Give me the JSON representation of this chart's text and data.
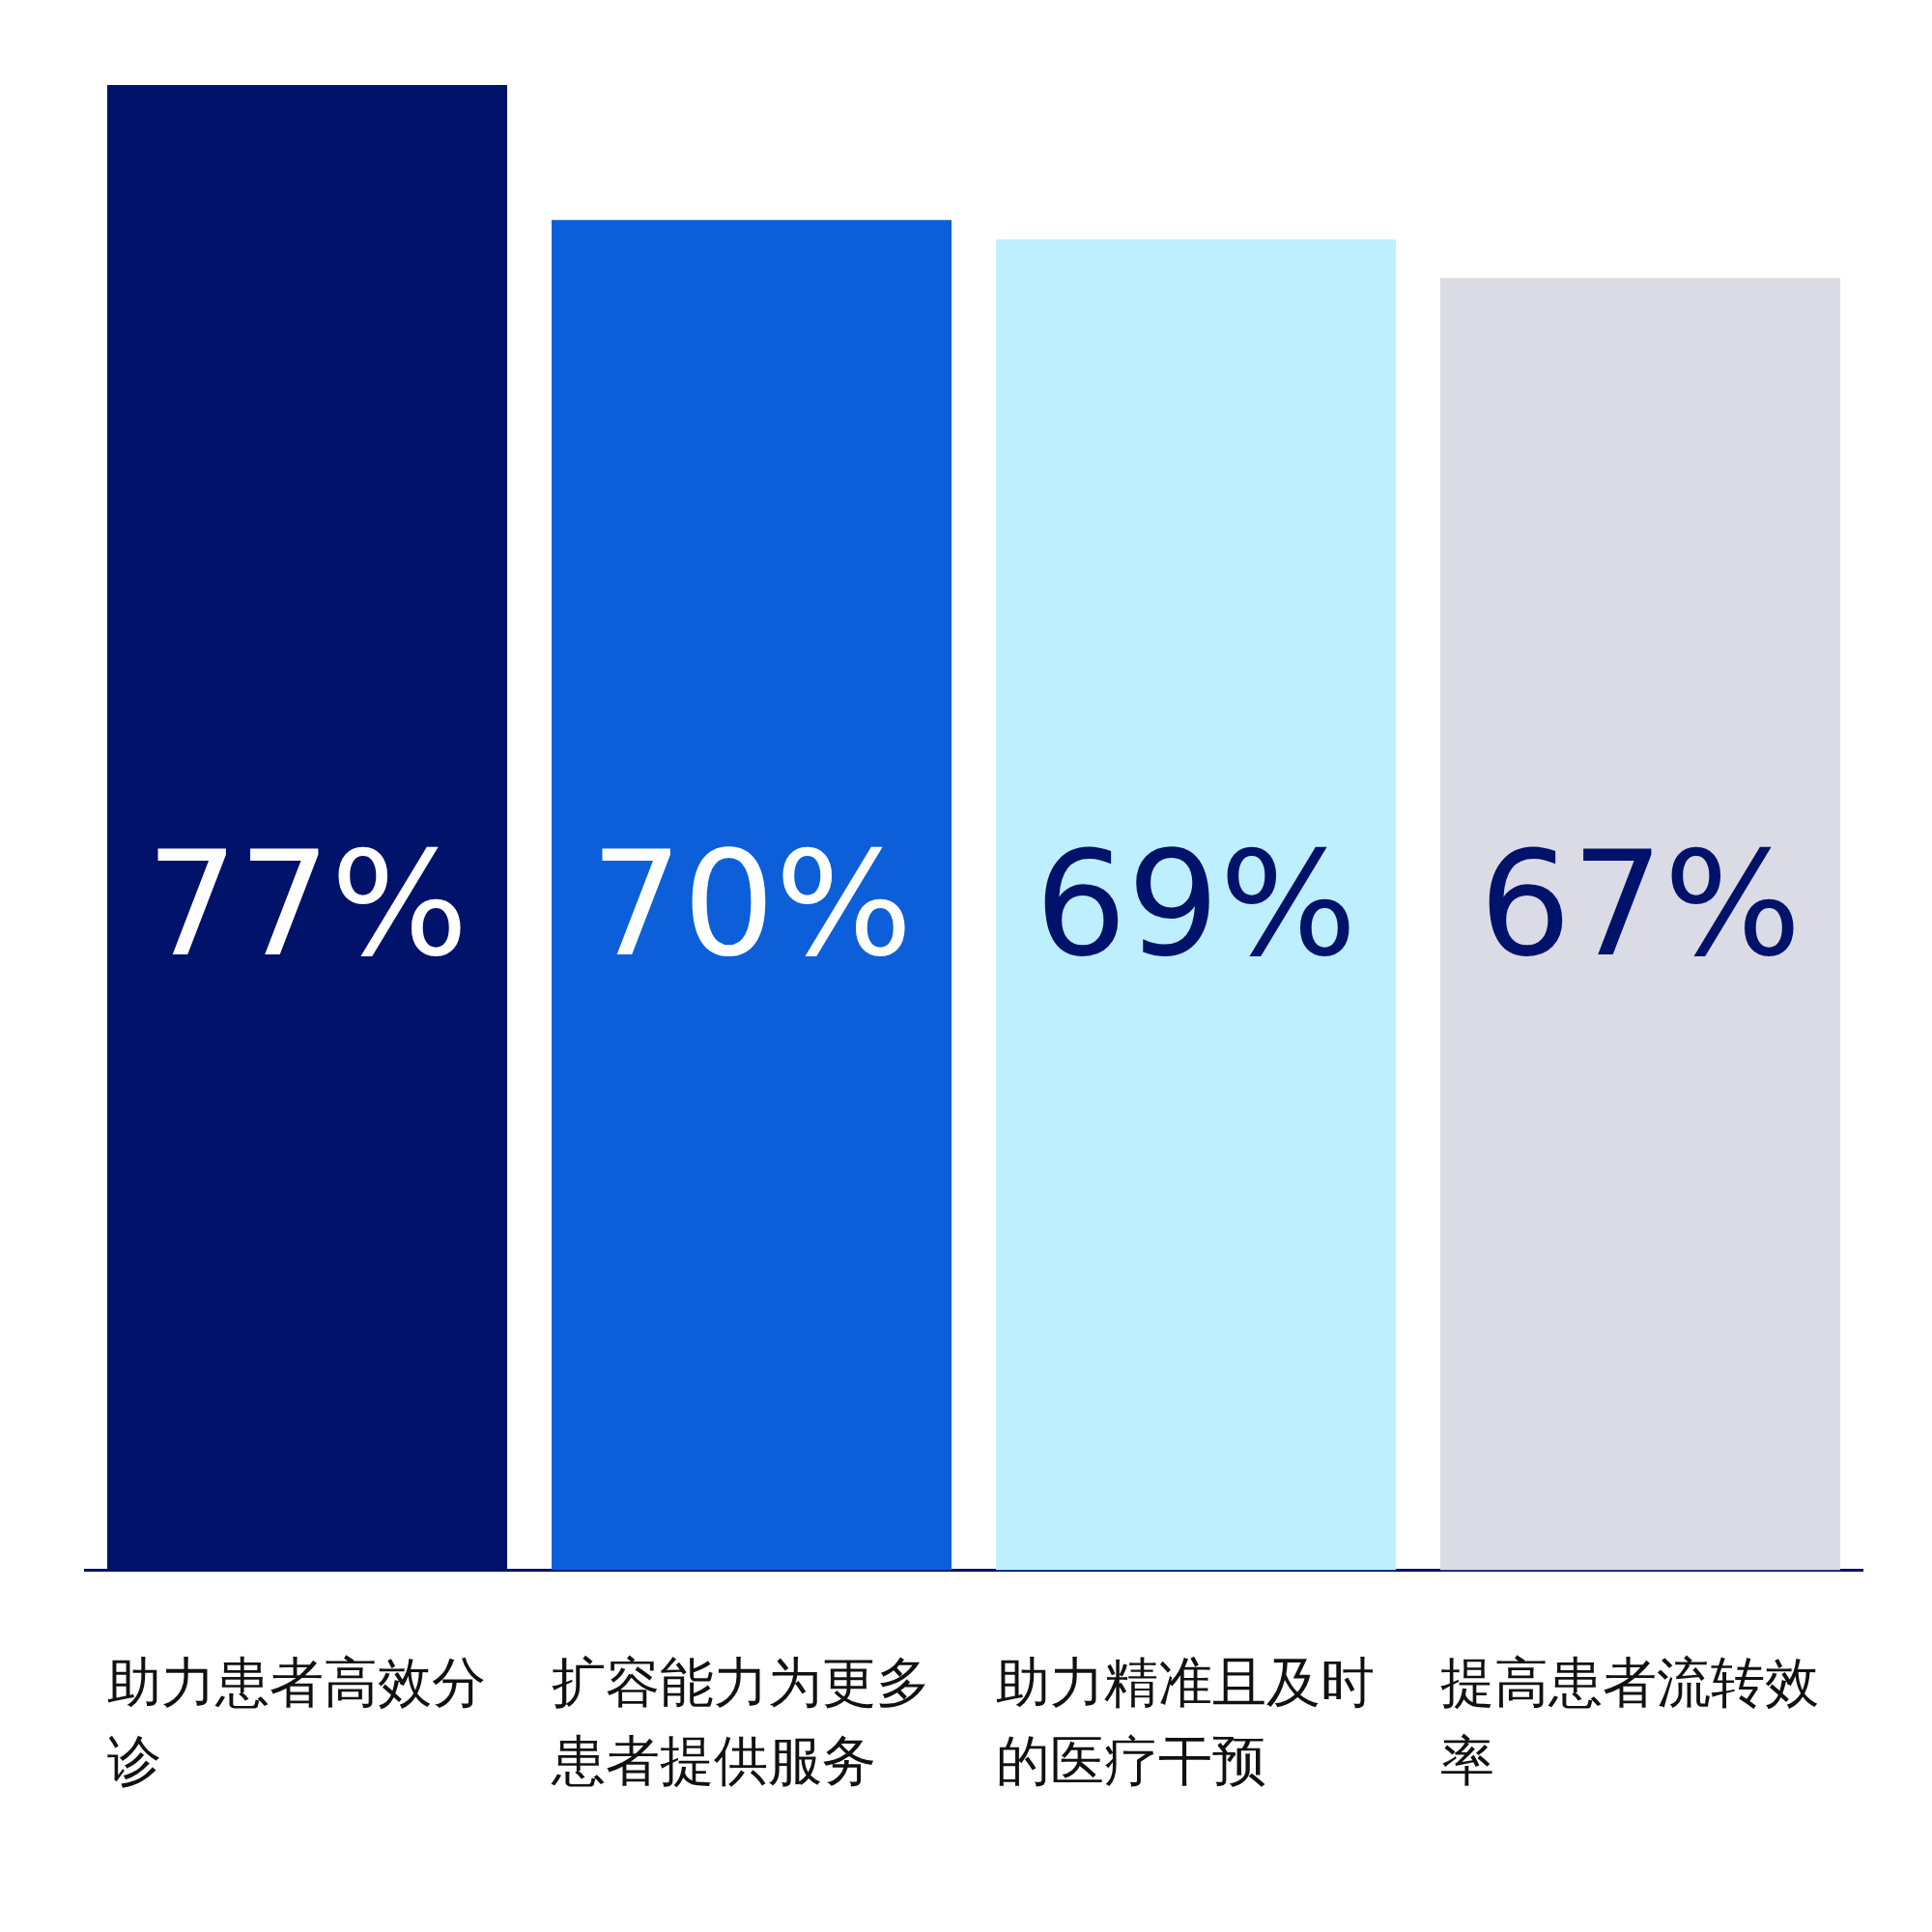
{
  "chart_data": {
    "type": "bar",
    "categories": [
      "助力患者高效分诊",
      "扩容能力为更多患者提供服务",
      "助力精准且及时的医疗干预",
      "提高患者流转效率"
    ],
    "values": [
      77,
      70,
      69,
      67
    ],
    "colors": [
      "#001269",
      "#0c5fd9",
      "#bdefff",
      "#dadbe5"
    ],
    "value_labels": [
      "77%",
      "70%",
      "69%",
      "67%"
    ],
    "grid": false,
    "legend": false
  }
}
